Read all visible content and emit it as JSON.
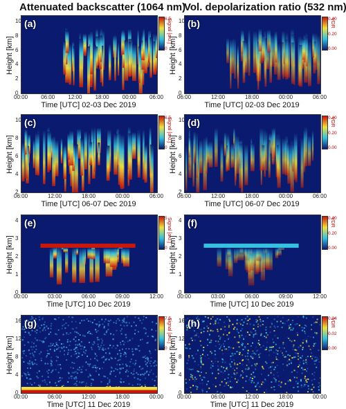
{
  "titles": {
    "left": "Attenuated backscatter (1064 nm)",
    "right": "Vol. depolarization ratio (532 nm)"
  },
  "ylabel": "Height  [km]",
  "colors": {
    "low": "#0a1a6e",
    "mid": "#35c0e0",
    "high": "#f0e040",
    "top": "#c8180c"
  },
  "chart_data": [
    {
      "type": "heatmap",
      "panel": "(a)",
      "title": "Attenuated backscatter (1064 nm)",
      "xlabel": "Time [UTC] 02-03 Dec 2019",
      "ylabel": "Height  [km]",
      "x_ticks": [
        "00:00",
        "06:00",
        "12:00",
        "18:00",
        "00:00",
        "06:00"
      ],
      "y_ticks": [
        "0",
        "2",
        "4",
        "6",
        "8",
        "10"
      ],
      "ylim": [
        0,
        10.5
      ],
      "colorbar": {
        "label": "Signal [a.u.]",
        "min": "0",
        "max": "6.5"
      }
    },
    {
      "type": "heatmap",
      "panel": "(b)",
      "title": "Vol. depolarization ratio (532 nm)",
      "xlabel": "Time [UTC] 02-03 Dec 2019",
      "ylabel": "Height  [km]",
      "x_ticks": [
        "06:00",
        "12:00",
        "18:00",
        "00:00",
        "06:00"
      ],
      "y_ticks": [
        "0",
        "2",
        "4",
        "6",
        "8",
        "10"
      ],
      "ylim": [
        0,
        10.5
      ],
      "colorbar": {
        "label": "VDR",
        "ticks": [
          "0.00",
          "0.20",
          "0.40"
        ]
      }
    },
    {
      "type": "heatmap",
      "panel": "(c)",
      "xlabel": "Time [UTC] 06-07 Dec 2019",
      "ylabel": "Height  [km]",
      "x_ticks": [
        "06:00",
        "12:00",
        "18:00",
        "00:00",
        "06:00"
      ],
      "y_ticks": [
        "2",
        "4",
        "6",
        "8",
        "10"
      ],
      "ylim": [
        0,
        10.5
      ],
      "colorbar": {
        "label": "Signal [a.u.]",
        "min": "0",
        "max": "6.5"
      }
    },
    {
      "type": "heatmap",
      "panel": "(d)",
      "xlabel": "Time [UTC] 06-07 Dec 2019",
      "ylabel": "Height  [km]",
      "x_ticks": [
        "06:00",
        "12:00",
        "18:00",
        "00:00",
        "06:00"
      ],
      "y_ticks": [
        "2",
        "4",
        "6",
        "8",
        "10"
      ],
      "ylim": [
        0,
        10.5
      ],
      "colorbar": {
        "label": "VDR",
        "ticks": [
          "0.00",
          "0.20",
          "0.40"
        ]
      }
    },
    {
      "type": "heatmap",
      "panel": "(e)",
      "xlabel": "Time [UTC] 10 Dec 2019",
      "ylabel": "Height  [km]",
      "x_ticks": [
        "00:00",
        "03:00",
        "06:00",
        "09:00",
        "12:00"
      ],
      "y_ticks": [
        "0",
        "1",
        "2",
        "3",
        "4"
      ],
      "ylim": [
        0,
        4
      ],
      "colorbar": {
        "label": "Signal [a.u.]",
        "min": "0",
        "max": "5"
      }
    },
    {
      "type": "heatmap",
      "panel": "(f)",
      "xlabel": "Time [UTC] 10 Dec 2019",
      "ylabel": "Height  [km]",
      "x_ticks": [
        "00:00",
        "03:00",
        "06:00",
        "09:00",
        "12:00"
      ],
      "y_ticks": [
        "0",
        "1",
        "2",
        "3",
        "4"
      ],
      "ylim": [
        0,
        4
      ],
      "colorbar": {
        "label": "VDR",
        "ticks": [
          "0.00",
          "0.20",
          "0.40"
        ]
      }
    },
    {
      "type": "heatmap",
      "panel": "(g)",
      "xlabel": "Time [UTC] 11 Dec 2019",
      "ylabel": "Height  [km]",
      "x_ticks": [
        "00:00",
        "06:00",
        "12:00",
        "18:00",
        "00:00"
      ],
      "y_ticks": [
        "0",
        "4",
        "8",
        "12",
        "16"
      ],
      "ylim": [
        0,
        16
      ],
      "colorbar": {
        "label": "Signal [a.u.]",
        "min": "0",
        "max": "7.5"
      }
    },
    {
      "type": "heatmap",
      "panel": "(h)",
      "xlabel": "Time [UTC] 11 Dec 2019",
      "ylabel": "Height  [km]",
      "x_ticks": [
        "00:00",
        "06:00",
        "12:00",
        "18:00",
        "00:00"
      ],
      "y_ticks": [
        "0",
        "4",
        "8",
        "12",
        "16"
      ],
      "ylim": [
        0,
        16
      ],
      "colorbar": {
        "label": "VDR",
        "ticks": [
          "0.00",
          "0.02",
          "0.04"
        ]
      }
    }
  ]
}
